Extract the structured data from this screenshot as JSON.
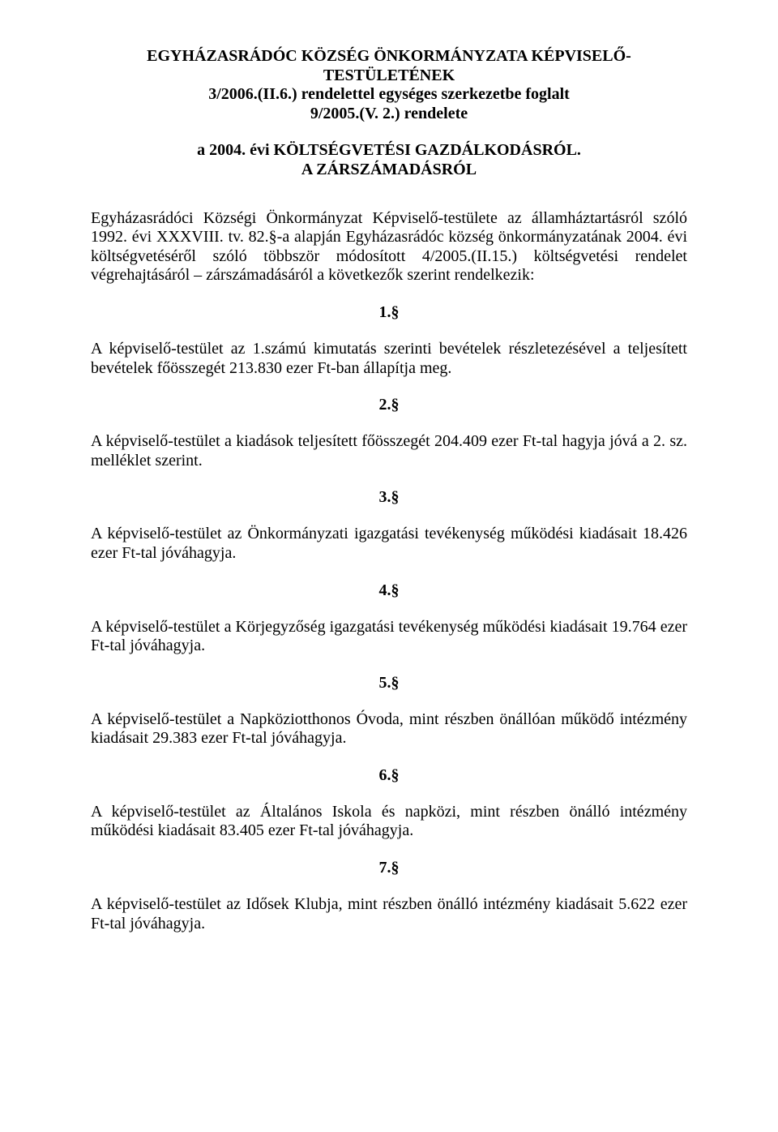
{
  "header": {
    "line1": "EGYHÁZASRÁDÓC KÖZSÉG ÖNKORMÁNYZATA KÉPVISELŐ-",
    "line2": "TESTÜLETÉNEK",
    "line3": "3/2006.(II.6.) rendelettel egységes szerkezetbe foglalt",
    "line4": "9/2005.(V. 2.) rendelete"
  },
  "subheader": {
    "line1": "a 2004. évi KÖLTSÉGVETÉSI GAZDÁLKODÁSRÓL.",
    "line2": "A ZÁRSZÁMADÁSRÓL"
  },
  "preamble": "Egyházasrádóci Községi Önkormányzat Képviselő-testülete az államháztartásról szóló 1992. évi XXXVIII. tv. 82.§-a alapján Egyházasrádóc község önkormányzatának 2004. évi költségvetéséről szóló többször módosított 4/2005.(II.15.) költségvetési rendelet végrehajtásáról – zárszámadásáról a következők szerint rendelkezik:",
  "sections": [
    {
      "num": "1.§",
      "text": "A képviselő-testület az 1.számú kimutatás szerinti bevételek részletezésével a teljesített bevételek főösszegét 213.830 ezer Ft-ban állapítja meg."
    },
    {
      "num": "2.§",
      "text": "A képviselő-testület a kiadások teljesített főösszegét 204.409 ezer Ft-tal hagyja jóvá a 2. sz. melléklet szerint."
    },
    {
      "num": "3.§",
      "text": "A képviselő-testület az Önkormányzati igazgatási tevékenység működési kiadásait 18.426 ezer Ft-tal jóváhagyja."
    },
    {
      "num": "4.§",
      "text": "A képviselő-testület a Körjegyzőség igazgatási tevékenység működési kiadásait 19.764 ezer Ft-tal jóváhagyja."
    },
    {
      "num": "5.§",
      "text": "A képviselő-testület a Napköziotthonos Óvoda, mint részben önállóan működő intézmény kiadásait 29.383 ezer Ft-tal jóváhagyja."
    },
    {
      "num": "6.§",
      "text": "A képviselő-testület az Általános Iskola és napközi, mint részben önálló intézmény működési kiadásait 83.405 ezer Ft-tal jóváhagyja."
    },
    {
      "num": "7.§",
      "text": "A képviselő-testület az Idősek Klubja, mint részben önálló intézmény kiadásait 5.622 ezer Ft-tal jóváhagyja."
    }
  ]
}
